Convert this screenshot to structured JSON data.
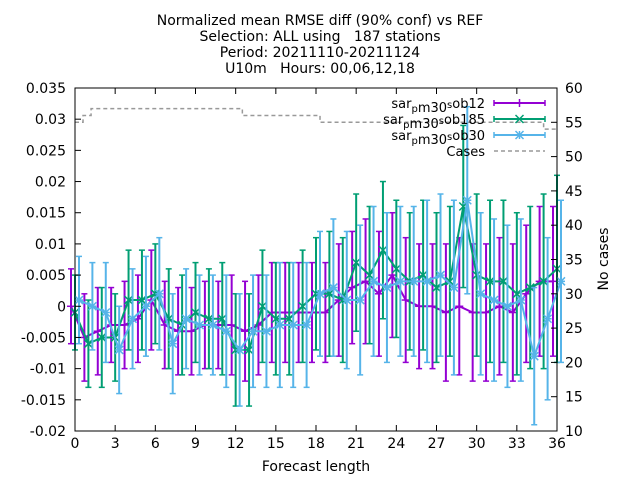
{
  "chart_data": {
    "type": "line",
    "title_lines": [
      "Normalized mean RMSE diff (90% conf) vs REF",
      "Selection: ALL using   187 stations",
      "Period: 20211110-20211124",
      "U10m   Hours: 00,06,12,18"
    ],
    "xlabel": "Forecast length",
    "ylabel_right": "No cases",
    "xlim": [
      0,
      36
    ],
    "ylim": [
      -0.02,
      0.035
    ],
    "y2lim": [
      10,
      60
    ],
    "xticks": [
      "0",
      "3",
      "6",
      "9",
      "12",
      "15",
      "18",
      "21",
      "24",
      "27",
      "30",
      "33",
      "36"
    ],
    "yticks": [
      "-0.02",
      "-0.015",
      "-0.01",
      "-0.005",
      "0",
      "0.005",
      "0.01",
      "0.015",
      "0.02",
      "0.025",
      "0.03",
      "0.035"
    ],
    "y2ticks": [
      "10",
      "15",
      "20",
      "25",
      "30",
      "35",
      "40",
      "45",
      "50",
      "55",
      "60"
    ],
    "legend_position": "top-right",
    "x": [
      0,
      1,
      2,
      3,
      4,
      5,
      6,
      7,
      8,
      9,
      10,
      11,
      12,
      13,
      14,
      15,
      16,
      17,
      18,
      19,
      20,
      21,
      22,
      23,
      24,
      25,
      26,
      27,
      28,
      29,
      30,
      31,
      32,
      33,
      34,
      35,
      36
    ],
    "series": [
      {
        "name": "sar_pm30_sob12",
        "legend_parts": [
          [
            "sar",
            0
          ],
          [
            "p",
            1
          ],
          [
            "m30",
            0
          ],
          [
            "s",
            -1
          ],
          [
            "ob12",
            0
          ]
        ],
        "color": "#9400d3",
        "marker": "plus",
        "values": [
          0.0,
          -0.005,
          -0.004,
          -0.003,
          -0.003,
          -0.002,
          0.001,
          -0.003,
          -0.004,
          -0.004,
          -0.003,
          -0.003,
          -0.003,
          -0.004,
          -0.003,
          -0.001,
          -0.001,
          -0.001,
          -0.001,
          -0.001,
          0.001,
          0.003,
          0.004,
          0.002,
          0.005,
          0.001,
          0.0,
          0.0,
          -0.001,
          0.0,
          -0.001,
          -0.001,
          0.0,
          -0.001,
          0.002,
          0.004,
          0.004
        ],
        "err": [
          0.006,
          0.007,
          0.007,
          0.006,
          0.007,
          0.007,
          0.008,
          0.007,
          0.007,
          0.007,
          0.007,
          0.007,
          0.008,
          0.008,
          0.008,
          0.008,
          0.008,
          0.008,
          0.008,
          0.008,
          0.009,
          0.009,
          0.01,
          0.01,
          0.01,
          0.01,
          0.01,
          0.01,
          0.011,
          0.011,
          0.011,
          0.011,
          0.011,
          0.011,
          0.011,
          0.012,
          0.012
        ]
      },
      {
        "name": "sar_pm30_sob185",
        "legend_parts": [
          [
            "sar",
            0
          ],
          [
            "p",
            1
          ],
          [
            "m30",
            0
          ],
          [
            "s",
            -1
          ],
          [
            "ob185",
            0
          ]
        ],
        "color": "#009e73",
        "marker": "cross",
        "values": [
          -0.001,
          -0.006,
          -0.005,
          -0.005,
          0.001,
          0.001,
          0.002,
          -0.002,
          -0.003,
          -0.001,
          -0.002,
          -0.002,
          -0.007,
          -0.007,
          0.0,
          -0.002,
          -0.002,
          0.0,
          0.002,
          0.002,
          0.001,
          0.007,
          0.005,
          0.009,
          0.006,
          0.004,
          0.005,
          0.003,
          0.004,
          0.016,
          0.005,
          0.004,
          0.004,
          0.002,
          0.003,
          0.004,
          0.006
        ],
        "err": [
          0.006,
          0.007,
          0.008,
          0.007,
          0.008,
          0.008,
          0.008,
          0.008,
          0.008,
          0.008,
          0.008,
          0.009,
          0.009,
          0.009,
          0.009,
          0.009,
          0.009,
          0.009,
          0.009,
          0.01,
          0.01,
          0.011,
          0.011,
          0.011,
          0.011,
          0.011,
          0.012,
          0.012,
          0.012,
          0.013,
          0.013,
          0.013,
          0.013,
          0.013,
          0.013,
          0.014,
          0.015
        ]
      },
      {
        "name": "sar_pm30_sob30",
        "legend_parts": [
          [
            "sar",
            0
          ],
          [
            "p",
            1
          ],
          [
            "m30",
            0
          ],
          [
            "s",
            -1
          ],
          [
            "ob30",
            0
          ]
        ],
        "color": "#56b4e9",
        "marker": "star",
        "values": [
          0.001,
          0.0,
          -0.001,
          -0.007,
          -0.002,
          0.0,
          0.002,
          -0.006,
          -0.002,
          -0.003,
          -0.003,
          -0.004,
          -0.007,
          -0.004,
          -0.004,
          -0.003,
          -0.003,
          -0.003,
          0.002,
          0.003,
          0.001,
          0.001,
          0.004,
          0.003,
          0.004,
          0.004,
          0.004,
          0.005,
          0.003,
          0.017,
          0.002,
          0.001,
          0.0,
          0.001,
          -0.008,
          -0.002,
          0.004
        ],
        "err": [
          0.007,
          0.007,
          0.008,
          0.007,
          0.008,
          0.008,
          0.009,
          0.008,
          0.008,
          0.008,
          0.008,
          0.009,
          0.009,
          0.009,
          0.009,
          0.01,
          0.01,
          0.01,
          0.01,
          0.011,
          0.011,
          0.012,
          0.012,
          0.012,
          0.012,
          0.012,
          0.013,
          0.013,
          0.014,
          0.015,
          0.013,
          0.013,
          0.013,
          0.013,
          0.011,
          0.013,
          0.013
        ]
      },
      {
        "name": "Cases",
        "color": "#999999",
        "axis": "right",
        "style": "dashed",
        "cases_steps": [
          [
            0,
            55
          ],
          [
            0.6,
            56
          ],
          [
            1.2,
            57
          ],
          [
            12.5,
            56
          ],
          [
            18.3,
            55
          ],
          [
            35,
            54
          ],
          [
            36,
            54
          ]
        ]
      }
    ]
  }
}
